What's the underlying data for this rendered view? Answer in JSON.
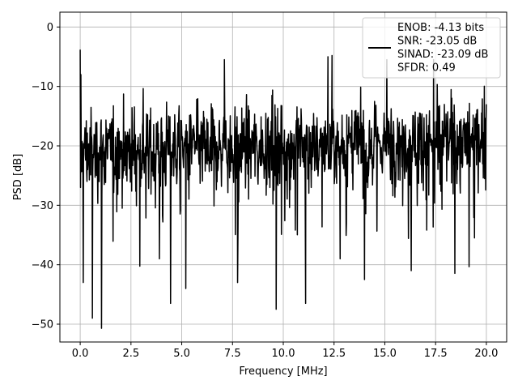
{
  "chart_data": {
    "type": "line",
    "xlabel": "Frequency [MHz]",
    "ylabel": "PSD [dB]",
    "xlim": [
      -1.0,
      21.0
    ],
    "ylim": [
      -53.0,
      2.5
    ],
    "xticks": [
      0.0,
      2.5,
      5.0,
      7.5,
      10.0,
      12.5,
      15.0,
      17.5,
      20.0
    ],
    "xtick_labels": [
      "0.0",
      "2.5",
      "5.0",
      "7.5",
      "10.0",
      "12.5",
      "15.0",
      "17.5",
      "20.0"
    ],
    "yticks": [
      0,
      -10,
      -20,
      -30,
      -40,
      -50
    ],
    "ytick_labels": [
      "0",
      "−10",
      "−20",
      "−30",
      "−40",
      "−50"
    ],
    "grid": true,
    "legend_position": "top-right",
    "legend_lines": [
      "ENOB: -4.13 bits",
      "SNR: -23.05 dB",
      "SINAD: -23.09 dB",
      "SFDR: 0.49"
    ],
    "series_color": "#000000",
    "series": [
      {
        "frequency_mhz_range": [
          0.0,
          20.0
        ],
        "num_points": 1200,
        "baseline_db": [
          -21.0,
          -19.0
        ],
        "noise_spread_db": 6.5,
        "initial_peak_db": -3.8,
        "notable_dips": [
          {
            "x": 0.15,
            "y": -43.0
          },
          {
            "x": 0.6,
            "y": -49.0
          },
          {
            "x": 1.05,
            "y": -50.7
          },
          {
            "x": 3.9,
            "y": -39.0
          },
          {
            "x": 4.45,
            "y": -46.5
          },
          {
            "x": 5.2,
            "y": -44.0
          },
          {
            "x": 7.75,
            "y": -43.0
          },
          {
            "x": 9.65,
            "y": -47.5
          },
          {
            "x": 11.1,
            "y": -46.5
          },
          {
            "x": 12.8,
            "y": -39.0
          },
          {
            "x": 14.0,
            "y": -42.5
          },
          {
            "x": 16.3,
            "y": -41.0
          }
        ],
        "peaks": [
          {
            "x": 7.1,
            "y": -5.5
          },
          {
            "x": 12.2,
            "y": -5.0
          },
          {
            "x": 12.4,
            "y": -4.8
          },
          {
            "x": 15.1,
            "y": -5.5
          },
          {
            "x": 17.4,
            "y": -5.5
          }
        ]
      }
    ]
  }
}
